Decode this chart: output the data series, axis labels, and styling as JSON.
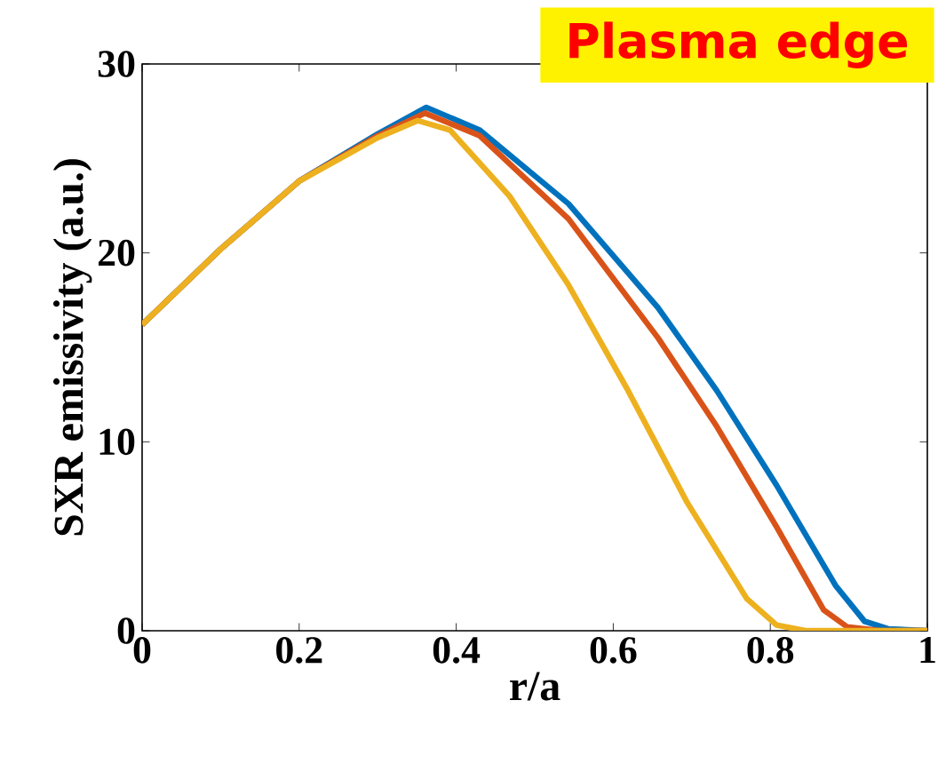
{
  "chart_data": {
    "type": "line",
    "xlabel": "r/a",
    "ylabel": "SXR emissivity (a.u.)",
    "annotations": [
      "Plasma edge"
    ],
    "xlim": [
      0,
      1
    ],
    "ylim": [
      0,
      30
    ],
    "xticks": [
      0,
      0.2,
      0.4,
      0.6,
      0.8,
      1
    ],
    "yticks": [
      0,
      10,
      20,
      30
    ],
    "line_style": "solid",
    "series": [
      {
        "color": "#0072bd",
        "x": [
          0,
          0.1,
          0.2,
          0.3,
          0.362,
          0.43,
          0.543,
          0.657,
          0.732,
          0.808,
          0.883,
          0.92,
          0.95,
          1
        ],
        "values": [
          16.2,
          20.2,
          23.8,
          26.3,
          27.7,
          26.5,
          22.6,
          17.1,
          12.7,
          7.7,
          2.4,
          0.5,
          0.1,
          0
        ]
      },
      {
        "color": "#d95319",
        "x": [
          0,
          0.1,
          0.2,
          0.3,
          0.36,
          0.43,
          0.543,
          0.657,
          0.732,
          0.808,
          0.868,
          0.898,
          0.94,
          1
        ],
        "values": [
          16.2,
          20.2,
          23.8,
          26.2,
          27.4,
          26.2,
          21.8,
          15.5,
          10.8,
          5.5,
          1.1,
          0.2,
          0,
          0
        ]
      },
      {
        "color": "#edb120",
        "x": [
          0,
          0.1,
          0.2,
          0.3,
          0.351,
          0.392,
          0.468,
          0.543,
          0.619,
          0.694,
          0.77,
          0.808,
          0.845,
          1
        ],
        "values": [
          16.2,
          20.2,
          23.8,
          26.1,
          27.0,
          26.5,
          23.0,
          18.3,
          12.7,
          6.8,
          1.7,
          0.3,
          0,
          0
        ]
      }
    ]
  }
}
